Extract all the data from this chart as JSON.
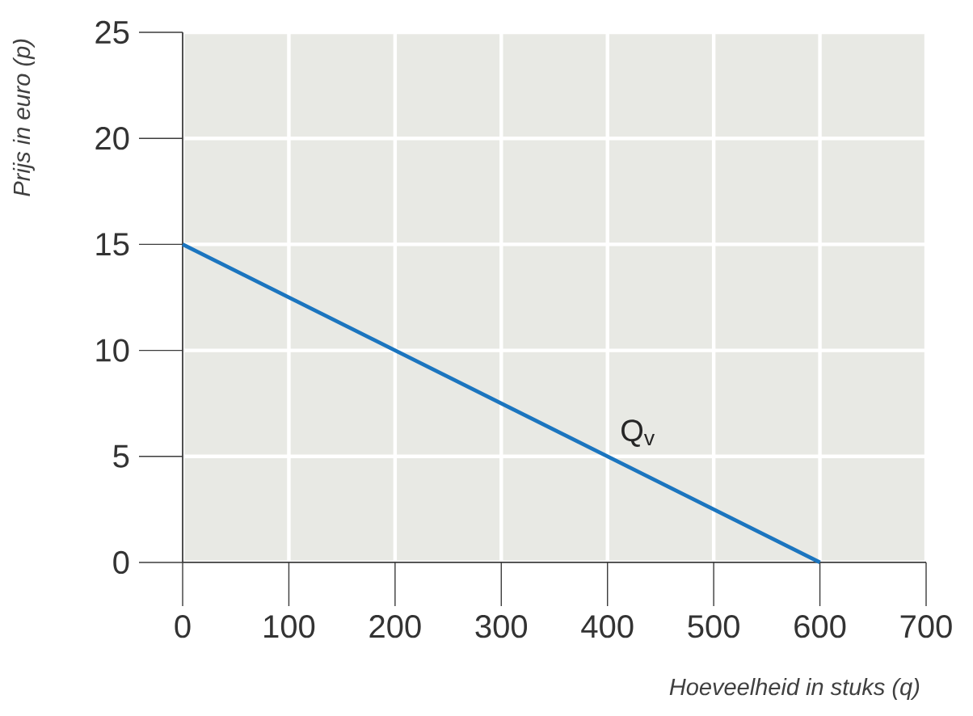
{
  "chart_data": {
    "type": "line",
    "xlabel": "Hoeveelheid in stuks (q)",
    "ylabel": "Prijs in euro (p)",
    "xlim": [
      0,
      700
    ],
    "xticks": [
      0,
      100,
      200,
      300,
      400,
      500,
      600,
      700
    ],
    "ylim": [
      0,
      25
    ],
    "yticks": [
      0,
      5,
      10,
      15,
      20,
      25
    ],
    "grid": true,
    "marker": "none",
    "line_style": "solid",
    "series": [
      {
        "name": "Q$_{v}$",
        "color": "#1b75bf",
        "x": [
          0,
          600
        ],
        "values": [
          15,
          0
        ]
      }
    ]
  }
}
